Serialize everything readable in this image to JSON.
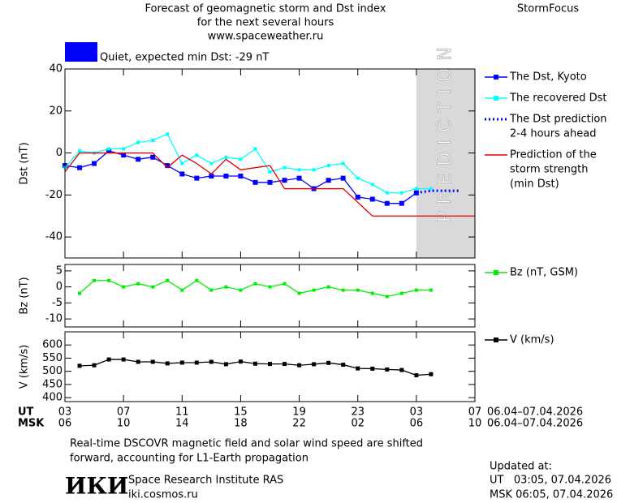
{
  "header": {
    "title_lines": [
      "Forecast of geomagnetic storm and Dst index",
      "for the next several hours",
      "www.spaceweather.ru"
    ],
    "brand": "StormFocus"
  },
  "status": {
    "text": "Quiet, expected min Dst: -29 nT",
    "color": "#0000ff"
  },
  "time_axis": {
    "rows": [
      {
        "name": "UT",
        "dates": "06.04–07.04.2026",
        "ticks": [
          {
            "value": 0,
            "label": "03"
          },
          {
            "value": 4,
            "label": "07"
          },
          {
            "value": 8,
            "label": "11"
          },
          {
            "value": 12,
            "label": "15"
          },
          {
            "value": 16,
            "label": "19"
          },
          {
            "value": 20,
            "label": "23"
          },
          {
            "value": 24,
            "label": "03"
          },
          {
            "value": 28,
            "label": "07"
          }
        ]
      },
      {
        "name": "MSK",
        "dates": "06.04–07.04.2026",
        "ticks": [
          {
            "value": 0,
            "label": "06"
          },
          {
            "value": 4,
            "label": "10"
          },
          {
            "value": 8,
            "label": "14"
          },
          {
            "value": 12,
            "label": "18"
          },
          {
            "value": 16,
            "label": "22"
          },
          {
            "value": 20,
            "label": "02"
          },
          {
            "value": 24,
            "label": "06"
          },
          {
            "value": 28,
            "label": "10"
          }
        ]
      }
    ]
  },
  "chart_data": [
    {
      "type": "line",
      "ylabel": "Dst (nT)",
      "xlim": [
        0,
        28
      ],
      "ylim": [
        -50,
        40
      ],
      "yticks": [
        -40,
        -20,
        0,
        20,
        40
      ],
      "prediction": {
        "from": 24,
        "text": "PREDICTION",
        "color": "#d9d9d9"
      },
      "series": [
        {
          "name": [
            "The Dst, Kyoto"
          ],
          "color": "#0000ff",
          "marker": "square",
          "x": [
            0,
            1,
            2,
            3,
            4,
            5,
            6,
            7,
            8,
            9,
            10,
            11,
            12,
            13,
            14,
            15,
            16,
            17,
            18,
            19,
            20,
            21,
            22,
            23,
            24
          ],
          "values": [
            -6,
            -7,
            -5,
            1,
            -1,
            -3,
            -2,
            -6,
            -10,
            -12,
            -11,
            -11,
            -11,
            -14,
            -14,
            -13,
            -12,
            -17,
            -13,
            -12,
            -21,
            -22,
            -24,
            -24,
            -19
          ]
        },
        {
          "name": [
            "The recovered Dst"
          ],
          "color": "#00ffff",
          "marker": "square",
          "x": [
            0,
            1,
            2,
            3,
            4,
            5,
            6,
            7,
            8,
            9,
            10,
            11,
            12,
            13,
            14,
            15,
            16,
            17,
            18,
            19,
            20,
            21,
            22,
            23,
            24,
            25
          ],
          "values": [
            -7,
            1,
            0,
            2,
            2,
            5,
            6,
            9,
            -5,
            -1,
            -5,
            -2,
            -3,
            2,
            -9,
            -7,
            -8,
            -8,
            -6,
            -5,
            -12,
            -15,
            -19,
            -19,
            -17,
            -17
          ]
        },
        {
          "name": [
            "The Dst prediction",
            "2-4 hours ahead"
          ],
          "color": "#0000ff",
          "dash": "dotted",
          "x": [
            24,
            25,
            26,
            27
          ],
          "values": [
            -19,
            -18,
            -18,
            -18
          ]
        },
        {
          "name": [
            "Prediction of the",
            "storm strength",
            "(min Dst)"
          ],
          "color": "#e00000",
          "x": [
            0,
            1,
            6,
            7,
            8,
            9,
            10,
            11,
            12,
            13,
            14,
            15,
            19,
            21,
            28
          ],
          "values": [
            -9,
            0,
            0,
            -7,
            -1,
            -5,
            -10,
            -3,
            -8,
            -7,
            -6,
            -17,
            -17,
            -30,
            -30
          ]
        }
      ]
    },
    {
      "type": "line",
      "ylabel": "Bz (nT)",
      "xlim": [
        0,
        28
      ],
      "ylim": [
        -12.5,
        7
      ],
      "yticks": [
        -10,
        -5,
        0,
        5
      ],
      "series": [
        {
          "name": [
            "Bz (nT, GSM)"
          ],
          "color": "#00ee00",
          "marker": "square",
          "x": [
            1,
            2,
            3,
            4,
            5,
            6,
            7,
            8,
            9,
            10,
            11,
            12,
            13,
            14,
            15,
            16,
            17,
            18,
            19,
            20,
            21,
            22,
            23,
            24,
            25
          ],
          "values": [
            -2,
            2,
            2,
            0,
            1,
            0,
            2,
            -1,
            2,
            -1,
            0,
            -1,
            1,
            0,
            1,
            -2,
            -1,
            0,
            -1,
            -1,
            -2,
            -3,
            -2,
            -1,
            -1
          ]
        }
      ]
    },
    {
      "type": "line",
      "ylabel": "V (km/s)",
      "xlim": [
        0,
        28
      ],
      "ylim": [
        385,
        650
      ],
      "yticks": [
        400,
        450,
        500,
        550,
        600
      ],
      "series": [
        {
          "name": [
            "V (km/s)"
          ],
          "color": "#000000",
          "marker": "square",
          "x": [
            1,
            2,
            3,
            4,
            5,
            6,
            7,
            8,
            9,
            10,
            11,
            12,
            13,
            14,
            15,
            16,
            17,
            18,
            19,
            20,
            21,
            22,
            23,
            24,
            25
          ],
          "values": [
            521,
            523,
            545,
            545,
            536,
            536,
            530,
            533,
            533,
            536,
            527,
            537,
            529,
            528,
            528,
            523,
            527,
            532,
            525,
            511,
            510,
            507,
            505,
            485,
            489
          ]
        }
      ]
    }
  ],
  "footer": {
    "note_lines": [
      "Real-time DSCOVR magnetic field and solar wind speed are shifted",
      "forward, accounting for L1-Earth propagation"
    ],
    "logo": "ИКИ",
    "institute": "Space Research Institute RAS",
    "site": "iki.cosmos.ru",
    "updated": [
      "Updated at:",
      "UT   03:05, 07.04.2026",
      "MSK 06:05, 07.04.2026"
    ]
  }
}
